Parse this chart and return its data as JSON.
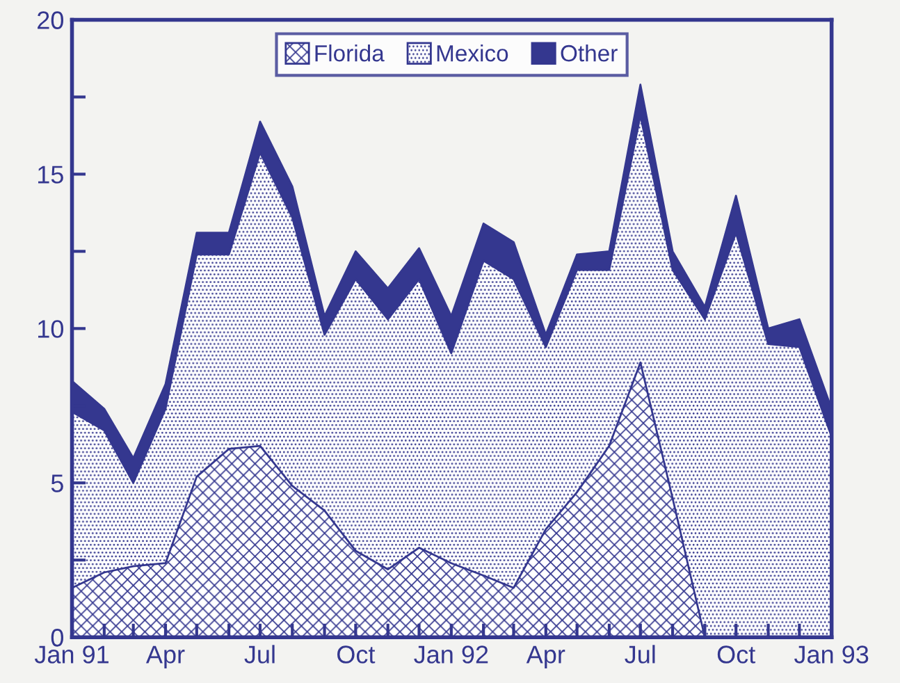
{
  "chart_data": {
    "type": "area",
    "stacked": true,
    "x": [
      "1991-01",
      "1991-02",
      "1991-03",
      "1991-04",
      "1991-05",
      "1991-06",
      "1991-07",
      "1991-08",
      "1991-09",
      "1991-10",
      "1991-11",
      "1991-12",
      "1992-01",
      "1992-02",
      "1992-03",
      "1992-04",
      "1992-05",
      "1992-06",
      "1992-07",
      "1992-08",
      "1992-09",
      "1992-10",
      "1992-11",
      "1992-12",
      "1993-01"
    ],
    "series": [
      {
        "name": "Florida",
        "color": "#34378f",
        "values": [
          1.6,
          2.1,
          2.3,
          2.4,
          5.2,
          6.1,
          6.2,
          4.9,
          4.1,
          2.8,
          2.2,
          2.9,
          2.4,
          2.0,
          1.6,
          3.5,
          4.7,
          6.2,
          8.9,
          4.5,
          0,
          0,
          0,
          0,
          0
        ]
      },
      {
        "name": "Mexico",
        "color": "#34378f",
        "values": [
          5.7,
          4.6,
          2.7,
          5.0,
          7.2,
          6.3,
          9.5,
          8.7,
          5.7,
          8.8,
          8.1,
          8.7,
          6.8,
          10.2,
          10.0,
          5.9,
          7.2,
          5.7,
          8.0,
          7.4,
          10.3,
          13.1,
          9.5,
          9.4,
          6.5
        ]
      },
      {
        "name": "Other",
        "color": "#34378f",
        "values": [
          1.0,
          0.7,
          0.8,
          0.8,
          0.7,
          0.7,
          1.0,
          1.0,
          0.6,
          0.9,
          1.0,
          1.0,
          1.2,
          1.2,
          1.2,
          0.4,
          0.5,
          0.6,
          1.0,
          0.6,
          0.4,
          1.2,
          0.5,
          0.9,
          0.9
        ]
      }
    ],
    "xlim": [
      "1991-01",
      "1993-01"
    ],
    "xticks": [
      {
        "value": "1991-01",
        "label": "Jan 91"
      },
      {
        "value": "1991-02",
        "label": null
      },
      {
        "value": "1991-03",
        "label": null
      },
      {
        "value": "1991-04",
        "label": "Apr"
      },
      {
        "value": "1991-05",
        "label": null
      },
      {
        "value": "1991-06",
        "label": null
      },
      {
        "value": "1991-07",
        "label": "Jul"
      },
      {
        "value": "1991-08",
        "label": null
      },
      {
        "value": "1991-09",
        "label": null
      },
      {
        "value": "1991-10",
        "label": "Oct"
      },
      {
        "value": "1991-11",
        "label": null
      },
      {
        "value": "1991-12",
        "label": null
      },
      {
        "value": "1992-01",
        "label": "Jan 92"
      },
      {
        "value": "1992-02",
        "label": null
      },
      {
        "value": "1992-03",
        "label": null
      },
      {
        "value": "1992-04",
        "label": "Apr"
      },
      {
        "value": "1992-05",
        "label": null
      },
      {
        "value": "1992-06",
        "label": null
      },
      {
        "value": "1992-07",
        "label": "Jul"
      },
      {
        "value": "1992-08",
        "label": null
      },
      {
        "value": "1992-09",
        "label": null
      },
      {
        "value": "1992-10",
        "label": "Oct"
      },
      {
        "value": "1992-11",
        "label": null
      },
      {
        "value": "1992-12",
        "label": null
      },
      {
        "value": "1993-01",
        "label": "Jan 93"
      }
    ],
    "ylim": [
      0,
      20
    ],
    "yticks": [
      0,
      {
        "value": 2.5,
        "label": null
      },
      5,
      {
        "value": 7.5,
        "label": null
      },
      10,
      {
        "value": 12.5,
        "label": null
      },
      15,
      {
        "value": 17.5,
        "label": null
      },
      20
    ],
    "grid": false,
    "legend": "top"
  }
}
